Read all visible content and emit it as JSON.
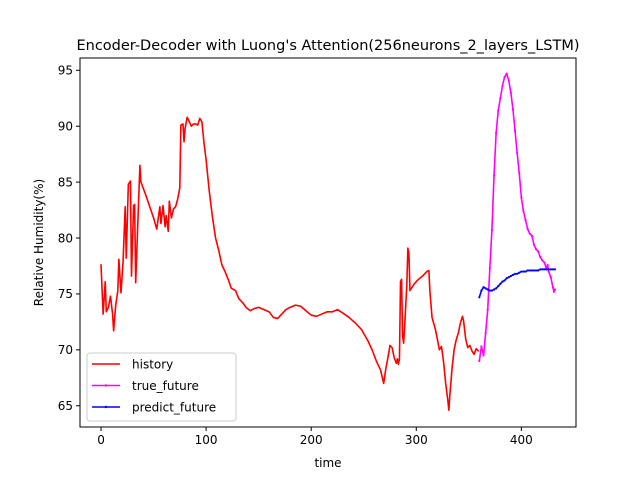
{
  "chart_data": {
    "type": "line",
    "title": "Encoder-Decoder with Luong's Attention(256neurons_2_layers_LSTM)",
    "xlabel": "time",
    "ylabel": "Relative Humidity(%)",
    "xlim": [
      -20,
      452
    ],
    "ylim": [
      63.1,
      96.1
    ],
    "xticks": [
      0,
      100,
      200,
      300,
      400
    ],
    "yticks": [
      65,
      70,
      75,
      80,
      85,
      90,
      95
    ],
    "grid": false,
    "legend_position": "lower-left",
    "series": [
      {
        "name": "history",
        "color": "#ff0000",
        "marker": "none",
        "points": [
          [
            0,
            77.6
          ],
          [
            2,
            73.2
          ],
          [
            4,
            76.1
          ],
          [
            5,
            73.4
          ],
          [
            7,
            73.8
          ],
          [
            9,
            74.8
          ],
          [
            11,
            73.2
          ],
          [
            12,
            71.7
          ],
          [
            14,
            74.0
          ],
          [
            16,
            75.3
          ],
          [
            17,
            78.1
          ],
          [
            19,
            75.1
          ],
          [
            21,
            77.9
          ],
          [
            23,
            82.8
          ],
          [
            24,
            78.2
          ],
          [
            26,
            84.8
          ],
          [
            28,
            85.1
          ],
          [
            29,
            76.6
          ],
          [
            31,
            82.9
          ],
          [
            32,
            83.0
          ],
          [
            33,
            76.0
          ],
          [
            35,
            81.3
          ],
          [
            37,
            86.5
          ],
          [
            38,
            85.0
          ],
          [
            42,
            84.0
          ],
          [
            46,
            82.9
          ],
          [
            50,
            81.8
          ],
          [
            53,
            80.8
          ],
          [
            56,
            82.8
          ],
          [
            57,
            81.3
          ],
          [
            59,
            82.9
          ],
          [
            61,
            81.0
          ],
          [
            62,
            82.0
          ],
          [
            64,
            80.6
          ],
          [
            65,
            83.3
          ],
          [
            67,
            81.8
          ],
          [
            69,
            82.6
          ],
          [
            71,
            82.8
          ],
          [
            73,
            83.5
          ],
          [
            75,
            84.5
          ],
          [
            76,
            90.1
          ],
          [
            78,
            90.2
          ],
          [
            79,
            88.6
          ],
          [
            80,
            89.8
          ],
          [
            82,
            90.8
          ],
          [
            84,
            90.4
          ],
          [
            86,
            90.0
          ],
          [
            88,
            90.2
          ],
          [
            90,
            90.2
          ],
          [
            92,
            90.1
          ],
          [
            94,
            90.7
          ],
          [
            96,
            90.4
          ],
          [
            98,
            88.5
          ],
          [
            100,
            87.0
          ],
          [
            103,
            84.2
          ],
          [
            106,
            81.9
          ],
          [
            109,
            80.0
          ],
          [
            112,
            78.9
          ],
          [
            115,
            77.6
          ],
          [
            118,
            77.0
          ],
          [
            121,
            76.3
          ],
          [
            124,
            75.5
          ],
          [
            128,
            75.3
          ],
          [
            131,
            74.6
          ],
          [
            135,
            74.2
          ],
          [
            138,
            73.8
          ],
          [
            142,
            73.5
          ],
          [
            146,
            73.7
          ],
          [
            150,
            73.8
          ],
          [
            155,
            73.6
          ],
          [
            160,
            73.4
          ],
          [
            164,
            72.9
          ],
          [
            168,
            72.8
          ],
          [
            172,
            73.2
          ],
          [
            176,
            73.6
          ],
          [
            180,
            73.8
          ],
          [
            185,
            74.0
          ],
          [
            190,
            73.9
          ],
          [
            195,
            73.5
          ],
          [
            200,
            73.1
          ],
          [
            205,
            73.0
          ],
          [
            210,
            73.2
          ],
          [
            215,
            73.4
          ],
          [
            220,
            73.4
          ],
          [
            225,
            73.6
          ],
          [
            230,
            73.3
          ],
          [
            236,
            72.9
          ],
          [
            242,
            72.4
          ],
          [
            248,
            71.8
          ],
          [
            254,
            70.8
          ],
          [
            258,
            70.0
          ],
          [
            262,
            69.0
          ],
          [
            266,
            68.2
          ],
          [
            269,
            67.0
          ],
          [
            271,
            68.3
          ],
          [
            273,
            69.3
          ],
          [
            275,
            70.4
          ],
          [
            277,
            70.2
          ],
          [
            279,
            69.3
          ],
          [
            281,
            68.8
          ],
          [
            282,
            69.2
          ],
          [
            283,
            68.7
          ],
          [
            284,
            69.2
          ],
          [
            285,
            76.1
          ],
          [
            286,
            76.3
          ],
          [
            287,
            71.2
          ],
          [
            288,
            70.6
          ],
          [
            289,
            72.2
          ],
          [
            291,
            75.8
          ],
          [
            292,
            79.1
          ],
          [
            293,
            78.6
          ],
          [
            294,
            75.3
          ],
          [
            298,
            75.9
          ],
          [
            302,
            76.3
          ],
          [
            306,
            76.6
          ],
          [
            310,
            77.0
          ],
          [
            312,
            77.1
          ],
          [
            313,
            75.2
          ],
          [
            315,
            72.9
          ],
          [
            318,
            71.9
          ],
          [
            320,
            71.0
          ],
          [
            322,
            70.0
          ],
          [
            324,
            70.3
          ],
          [
            326,
            68.9
          ],
          [
            328,
            67.0
          ],
          [
            330,
            65.5
          ],
          [
            331,
            64.6
          ],
          [
            332,
            66.0
          ],
          [
            334,
            68.3
          ],
          [
            336,
            70.0
          ],
          [
            338,
            70.9
          ],
          [
            340,
            71.5
          ],
          [
            342,
            72.4
          ],
          [
            344,
            73.0
          ],
          [
            345,
            72.6
          ],
          [
            347,
            71.0
          ],
          [
            349,
            70.2
          ],
          [
            351,
            70.4
          ],
          [
            353,
            69.9
          ],
          [
            355,
            69.6
          ],
          [
            357,
            70.1
          ],
          [
            359,
            69.9
          ]
        ]
      },
      {
        "name": "true_future",
        "color": "#ff00ff",
        "marker": "dot",
        "points": [
          [
            360,
            69.0
          ],
          [
            362,
            70.3
          ],
          [
            364,
            69.5
          ],
          [
            366,
            71.5
          ],
          [
            368,
            73.6
          ],
          [
            370,
            77.3
          ],
          [
            372,
            80.7
          ],
          [
            374,
            85.6
          ],
          [
            376,
            89.4
          ],
          [
            378,
            91.4
          ],
          [
            380,
            92.5
          ],
          [
            382,
            93.6
          ],
          [
            384,
            94.4
          ],
          [
            386,
            94.7
          ],
          [
            388,
            94.1
          ],
          [
            390,
            93.0
          ],
          [
            392,
            91.5
          ],
          [
            394,
            89.6
          ],
          [
            396,
            87.6
          ],
          [
            398,
            85.8
          ],
          [
            400,
            83.6
          ],
          [
            402,
            82.4
          ],
          [
            404,
            81.6
          ],
          [
            406,
            80.8
          ],
          [
            408,
            80.4
          ],
          [
            410,
            80.2
          ],
          [
            412,
            79.4
          ],
          [
            414,
            79.0
          ],
          [
            416,
            78.8
          ],
          [
            418,
            78.3
          ],
          [
            420,
            78.0
          ],
          [
            422,
            77.8
          ],
          [
            424,
            77.2
          ],
          [
            425,
            77.6
          ],
          [
            426,
            77.0
          ],
          [
            428,
            76.5
          ],
          [
            430,
            75.6
          ],
          [
            431,
            75.2
          ],
          [
            432,
            75.4
          ]
        ]
      },
      {
        "name": "predict_future",
        "color": "#0000ff",
        "marker": "dot",
        "points": [
          [
            360,
            74.7
          ],
          [
            362,
            75.3
          ],
          [
            364,
            75.6
          ],
          [
            366,
            75.5
          ],
          [
            368,
            75.4
          ],
          [
            370,
            75.3
          ],
          [
            372,
            75.3
          ],
          [
            374,
            75.4
          ],
          [
            376,
            75.5
          ],
          [
            378,
            75.7
          ],
          [
            380,
            75.9
          ],
          [
            382,
            76.1
          ],
          [
            384,
            76.2
          ],
          [
            386,
            76.4
          ],
          [
            388,
            76.5
          ],
          [
            390,
            76.6
          ],
          [
            392,
            76.7
          ],
          [
            394,
            76.8
          ],
          [
            396,
            76.8
          ],
          [
            398,
            76.9
          ],
          [
            400,
            77.0
          ],
          [
            402,
            77.0
          ],
          [
            404,
            77.0
          ],
          [
            406,
            77.1
          ],
          [
            408,
            77.1
          ],
          [
            410,
            77.1
          ],
          [
            412,
            77.1
          ],
          [
            414,
            77.1
          ],
          [
            416,
            77.1
          ],
          [
            418,
            77.2
          ],
          [
            420,
            77.2
          ],
          [
            422,
            77.2
          ],
          [
            424,
            77.2
          ],
          [
            426,
            77.2
          ],
          [
            428,
            77.2
          ],
          [
            430,
            77.2
          ],
          [
            432,
            77.2
          ]
        ]
      }
    ]
  }
}
